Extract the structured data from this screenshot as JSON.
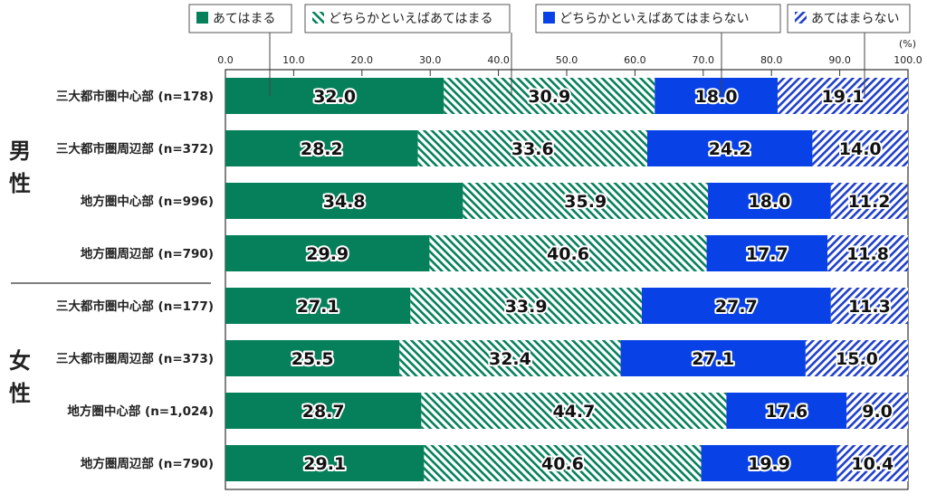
{
  "chart_data": {
    "type": "bar",
    "orientation": "horizontal",
    "stacked": true,
    "unit_label": "(%)",
    "xlim": [
      0,
      100
    ],
    "ticks": [
      "0.0",
      "10.0",
      "20.0",
      "30.0",
      "40.0",
      "50.0",
      "60.0",
      "70.0",
      "80.0",
      "90.0",
      "100.0"
    ],
    "groups": [
      {
        "label": "男性",
        "start": 0,
        "count": 4
      },
      {
        "label": "女性",
        "start": 4,
        "count": 4
      }
    ],
    "categories": [
      "三大都市圏中心部 (n=178)",
      "三大都市圏周辺部 (n=372)",
      "地方圏中心部 (n=996)",
      "地方圏周辺部 (n=790)",
      "三大都市圏中心部 (n=177)",
      "三大都市圏周辺部 (n=373)",
      "地方圏中心部 (n=1,024)",
      "地方圏周辺部 (n=790)"
    ],
    "series": [
      {
        "name": "あてはまる",
        "color": "#06805a",
        "fill": "solid",
        "values": [
          32.0,
          28.2,
          34.8,
          29.9,
          27.1,
          25.5,
          28.7,
          29.1
        ]
      },
      {
        "name": "どちらかといえばあてはまる",
        "color": "#06805a",
        "fill": "hatch",
        "values": [
          30.9,
          33.6,
          35.9,
          40.6,
          33.9,
          32.4,
          44.7,
          40.6
        ]
      },
      {
        "name": "どちらかといえばあてはまらない",
        "color": "#0842e6",
        "fill": "solid",
        "values": [
          18.0,
          24.2,
          18.0,
          17.7,
          27.7,
          27.1,
          17.6,
          19.9
        ]
      },
      {
        "name": "あてはまらない",
        "color": "#1f3fc9",
        "fill": "hatch",
        "values": [
          19.1,
          14.0,
          11.2,
          11.8,
          11.3,
          15.0,
          9.0,
          10.4
        ]
      }
    ],
    "legend": "top",
    "grid": false
  }
}
